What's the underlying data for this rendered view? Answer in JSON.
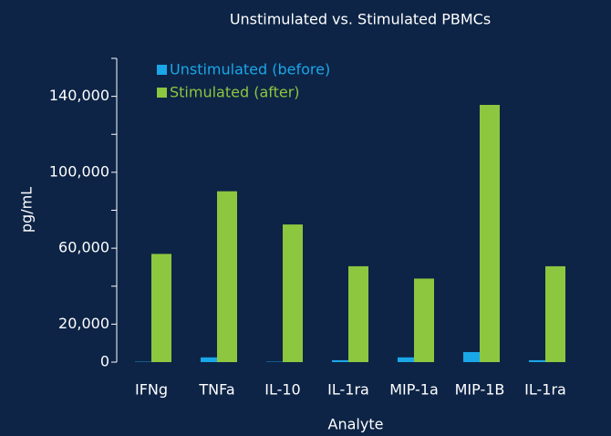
{
  "chart_data": {
    "type": "bar",
    "title": "Unstimulated vs. Stimulated PBMCs",
    "x_label": "Analyte",
    "y_label": "pg/mL",
    "categories": [
      "IFNg",
      "TNFa",
      "IL-10",
      "IL-1ra",
      "MIP-1a",
      "MIP-1B",
      "IL-1ra"
    ],
    "series": [
      {
        "name": "Unstimulated (before)",
        "color": "#1aa7e8",
        "values": [
          200,
          2500,
          200,
          1000,
          2500,
          5300,
          1000
        ]
      },
      {
        "name": "Stimulated (after)",
        "color": "#8dc63f",
        "values": [
          57000,
          90000,
          72500,
          50500,
          44000,
          135500,
          50500
        ]
      }
    ],
    "ylim": [
      0,
      160000
    ],
    "yticks": [
      0,
      {
        "value": 20000,
        "label": "20,000"
      },
      {
        "value": 60000,
        "label": "60,000"
      },
      {
        "value": 100000,
        "label": "100,000"
      },
      {
        "value": 140000,
        "label": "140,000"
      }
    ],
    "yminorticks": [
      40000,
      80000,
      120000,
      160000
    ],
    "legend": "top-left"
  }
}
